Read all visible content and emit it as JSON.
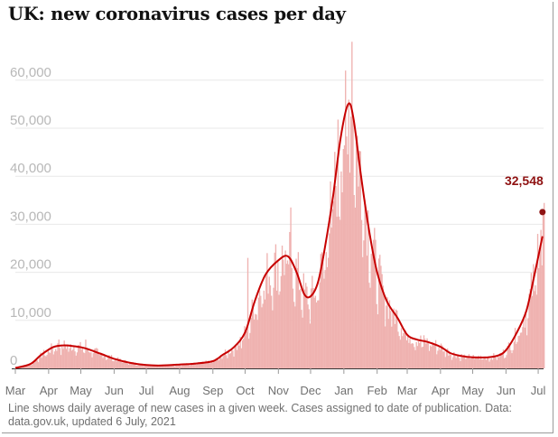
{
  "title": "UK: new coronavirus cases per day",
  "note": "Line shows daily average of new cases in a given week. Cases assigned to date of publication. Data: data.gov.uk, updated 6 July, 2021",
  "colors": {
    "bars": "#efb2b0",
    "line": "#c70000",
    "annotation": "#8f1212",
    "grid": "#e8e8e8"
  },
  "chart_data": {
    "type": "bar",
    "title": "UK: new coronavirus cases per day",
    "xlabel": "",
    "ylabel": "",
    "ylim": [
      0,
      70000
    ],
    "xlim": [
      "2020-03-01",
      "2021-07-06"
    ],
    "grid": true,
    "y_ticks": [
      "0",
      "10,000",
      "20,000",
      "30,000",
      "40,000",
      "50,000",
      "60,000"
    ],
    "y_tick_values": [
      0,
      10000,
      20000,
      30000,
      40000,
      50000,
      60000
    ],
    "x_ticks": [
      "Mar",
      "Apr",
      "May",
      "Jun",
      "Jul",
      "Aug",
      "Sep",
      "Oct",
      "Nov",
      "Dec",
      "Jan",
      "Feb",
      "Mar",
      "Apr",
      "May",
      "Jun",
      "Jul"
    ],
    "x_tick_dates": [
      "2020-03-01",
      "2020-04-01",
      "2020-05-01",
      "2020-06-01",
      "2020-07-01",
      "2020-08-01",
      "2020-09-01",
      "2020-10-01",
      "2020-11-01",
      "2020-12-01",
      "2021-01-01",
      "2021-02-01",
      "2021-03-01",
      "2021-04-01",
      "2021-05-01",
      "2021-06-01",
      "2021-07-01"
    ],
    "series": [
      {
        "kind": "line",
        "points": [
          [
            "2020-03-01",
            100
          ],
          [
            "2020-03-15",
            900
          ],
          [
            "2020-03-25",
            2800
          ],
          [
            "2020-04-05",
            4400
          ],
          [
            "2020-04-15",
            4800
          ],
          [
            "2020-04-25",
            4600
          ],
          [
            "2020-05-05",
            4200
          ],
          [
            "2020-05-20",
            3000
          ],
          [
            "2020-06-01",
            2000
          ],
          [
            "2020-06-15",
            1200
          ],
          [
            "2020-07-01",
            700
          ],
          [
            "2020-07-15",
            600
          ],
          [
            "2020-08-01",
            800
          ],
          [
            "2020-08-15",
            1000
          ],
          [
            "2020-09-01",
            1500
          ],
          [
            "2020-09-10",
            2800
          ],
          [
            "2020-09-20",
            4300
          ],
          [
            "2020-10-01",
            7500
          ],
          [
            "2020-10-10",
            14000
          ],
          [
            "2020-10-20",
            19500
          ],
          [
            "2020-11-01",
            22500
          ],
          [
            "2020-11-10",
            23300
          ],
          [
            "2020-11-18",
            20000
          ],
          [
            "2020-11-25",
            15500
          ],
          [
            "2020-12-01",
            15000
          ],
          [
            "2020-12-08",
            18000
          ],
          [
            "2020-12-15",
            26000
          ],
          [
            "2020-12-22",
            36000
          ],
          [
            "2020-12-29",
            48000
          ],
          [
            "2021-01-05",
            55000
          ],
          [
            "2021-01-10",
            52000
          ],
          [
            "2021-01-17",
            40000
          ],
          [
            "2021-01-25",
            28000
          ],
          [
            "2021-02-01",
            20000
          ],
          [
            "2021-02-10",
            14000
          ],
          [
            "2021-02-20",
            10500
          ],
          [
            "2021-03-01",
            7000
          ],
          [
            "2021-03-10",
            6000
          ],
          [
            "2021-03-20",
            5500
          ],
          [
            "2021-04-01",
            4500
          ],
          [
            "2021-04-10",
            3200
          ],
          [
            "2021-04-20",
            2600
          ],
          [
            "2021-05-01",
            2300
          ],
          [
            "2021-05-15",
            2300
          ],
          [
            "2021-05-25",
            2700
          ],
          [
            "2021-06-01",
            3800
          ],
          [
            "2021-06-10",
            7000
          ],
          [
            "2021-06-20",
            12000
          ],
          [
            "2021-06-28",
            20000
          ],
          [
            "2021-07-05",
            27500
          ]
        ]
      },
      {
        "kind": "bar",
        "peaks": [
          [
            "2020-04-10",
            6000
          ],
          [
            "2020-05-05",
            6000
          ],
          [
            "2020-10-03",
            23000
          ],
          [
            "2020-11-12",
            33500
          ],
          [
            "2021-01-08",
            68000
          ],
          [
            "2021-01-02",
            62000
          ],
          [
            "2021-06-30",
            28000
          ],
          [
            "2021-07-05",
            32548
          ]
        ]
      }
    ],
    "annotation": {
      "label": "32,548",
      "date": "2021-07-05",
      "value": 32548
    }
  }
}
